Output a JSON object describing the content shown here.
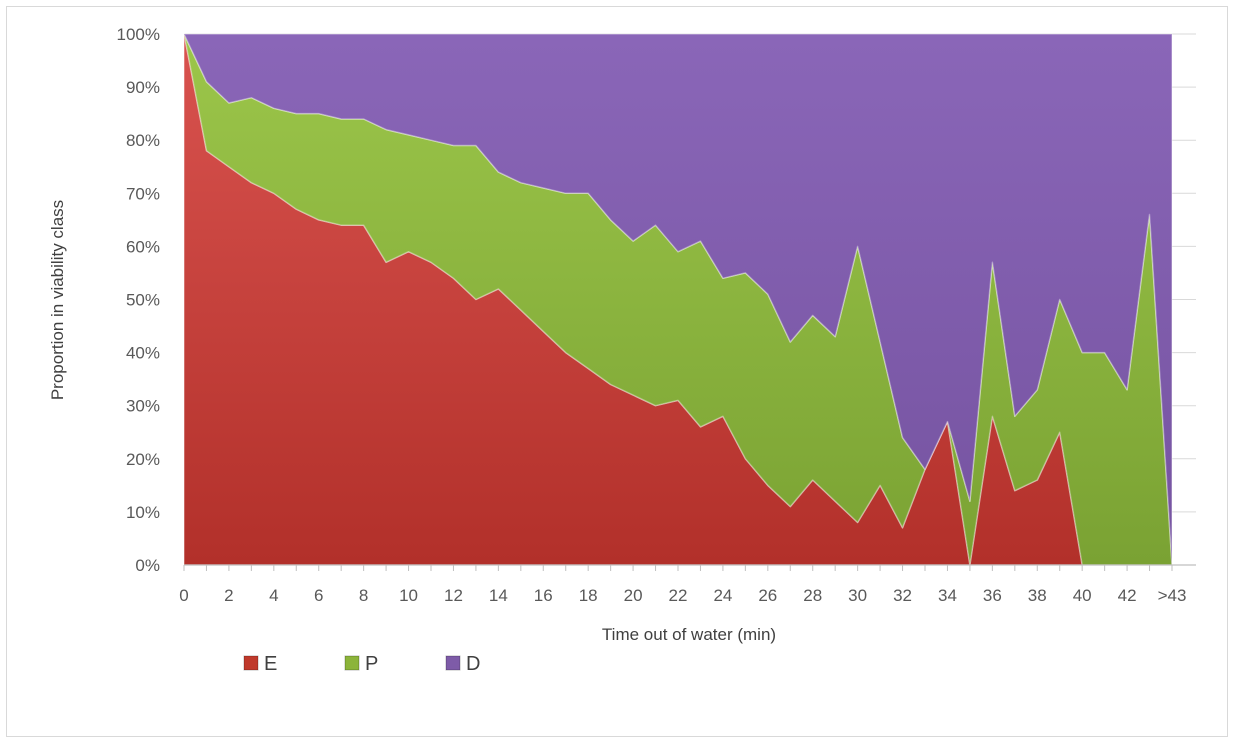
{
  "chart_data": {
    "type": "area",
    "stacked": "percent",
    "xlabel": "Time out of water (min)",
    "ylabel": "Proportion in viability class",
    "x_tick_labels": [
      "0",
      "2",
      "4",
      "6",
      "8",
      "10",
      "12",
      "14",
      "16",
      "18",
      "20",
      "22",
      "24",
      "26",
      "28",
      "30",
      "32",
      "34",
      "36",
      "38",
      "40",
      "42",
      ">43"
    ],
    "categories": [
      "0",
      "1",
      "2",
      "3",
      "4",
      "5",
      "6",
      "7",
      "8",
      "9",
      "10",
      "11",
      "12",
      "13",
      "14",
      "15",
      "16",
      "17",
      "18",
      "19",
      "20",
      "21",
      "22",
      "23",
      "24",
      "25",
      "26",
      "27",
      "28",
      "29",
      "30",
      "31",
      "32",
      "33",
      "34",
      "35",
      "36",
      "37",
      "38",
      "39",
      "40",
      "41",
      "42",
      "43",
      ">43"
    ],
    "y_ticks": [
      "0%",
      "10%",
      "20%",
      "30%",
      "40%",
      "50%",
      "60%",
      "70%",
      "80%",
      "90%",
      "100%"
    ],
    "ylim": [
      0,
      100
    ],
    "grid": true,
    "legend_position": "bottom-left",
    "series": [
      {
        "name": "E",
        "color": "#c0392b",
        "values": [
          100,
          78,
          75,
          72,
          70,
          67,
          65,
          64,
          64,
          57,
          59,
          57,
          54,
          50,
          52,
          48,
          44,
          40,
          37,
          34,
          32,
          30,
          31,
          26,
          28,
          20,
          15,
          11,
          16,
          12,
          8,
          15,
          7,
          18,
          27,
          0,
          28,
          14,
          16,
          25,
          0,
          0,
          0,
          0,
          0
        ]
      },
      {
        "name": "P",
        "color": "#8cb43a",
        "values": [
          0,
          13,
          12,
          16,
          16,
          18,
          20,
          20,
          20,
          25,
          22,
          23,
          25,
          29,
          22,
          24,
          27,
          30,
          33,
          31,
          29,
          34,
          28,
          35,
          26,
          35,
          36,
          31,
          31,
          31,
          52,
          27,
          17,
          0,
          0,
          12,
          29,
          14,
          17,
          25,
          40,
          40,
          33,
          66,
          0
        ]
      },
      {
        "name": "D",
        "color": "#7e5ba8",
        "values": [
          0,
          9,
          13,
          12,
          14,
          15,
          15,
          16,
          16,
          18,
          19,
          20,
          21,
          21,
          26,
          28,
          29,
          30,
          30,
          35,
          39,
          36,
          41,
          39,
          46,
          45,
          49,
          58,
          53,
          57,
          40,
          58,
          76,
          82,
          73,
          88,
          43,
          72,
          67,
          50,
          60,
          60,
          67,
          34,
          100
        ]
      }
    ]
  },
  "legend": {
    "items": [
      {
        "label": "E",
        "color": "#c0392b",
        "icon": "red-square-icon"
      },
      {
        "label": "P",
        "color": "#8cb43a",
        "icon": "green-square-icon"
      },
      {
        "label": "D",
        "color": "#7e5ba8",
        "icon": "purple-square-icon"
      }
    ]
  }
}
